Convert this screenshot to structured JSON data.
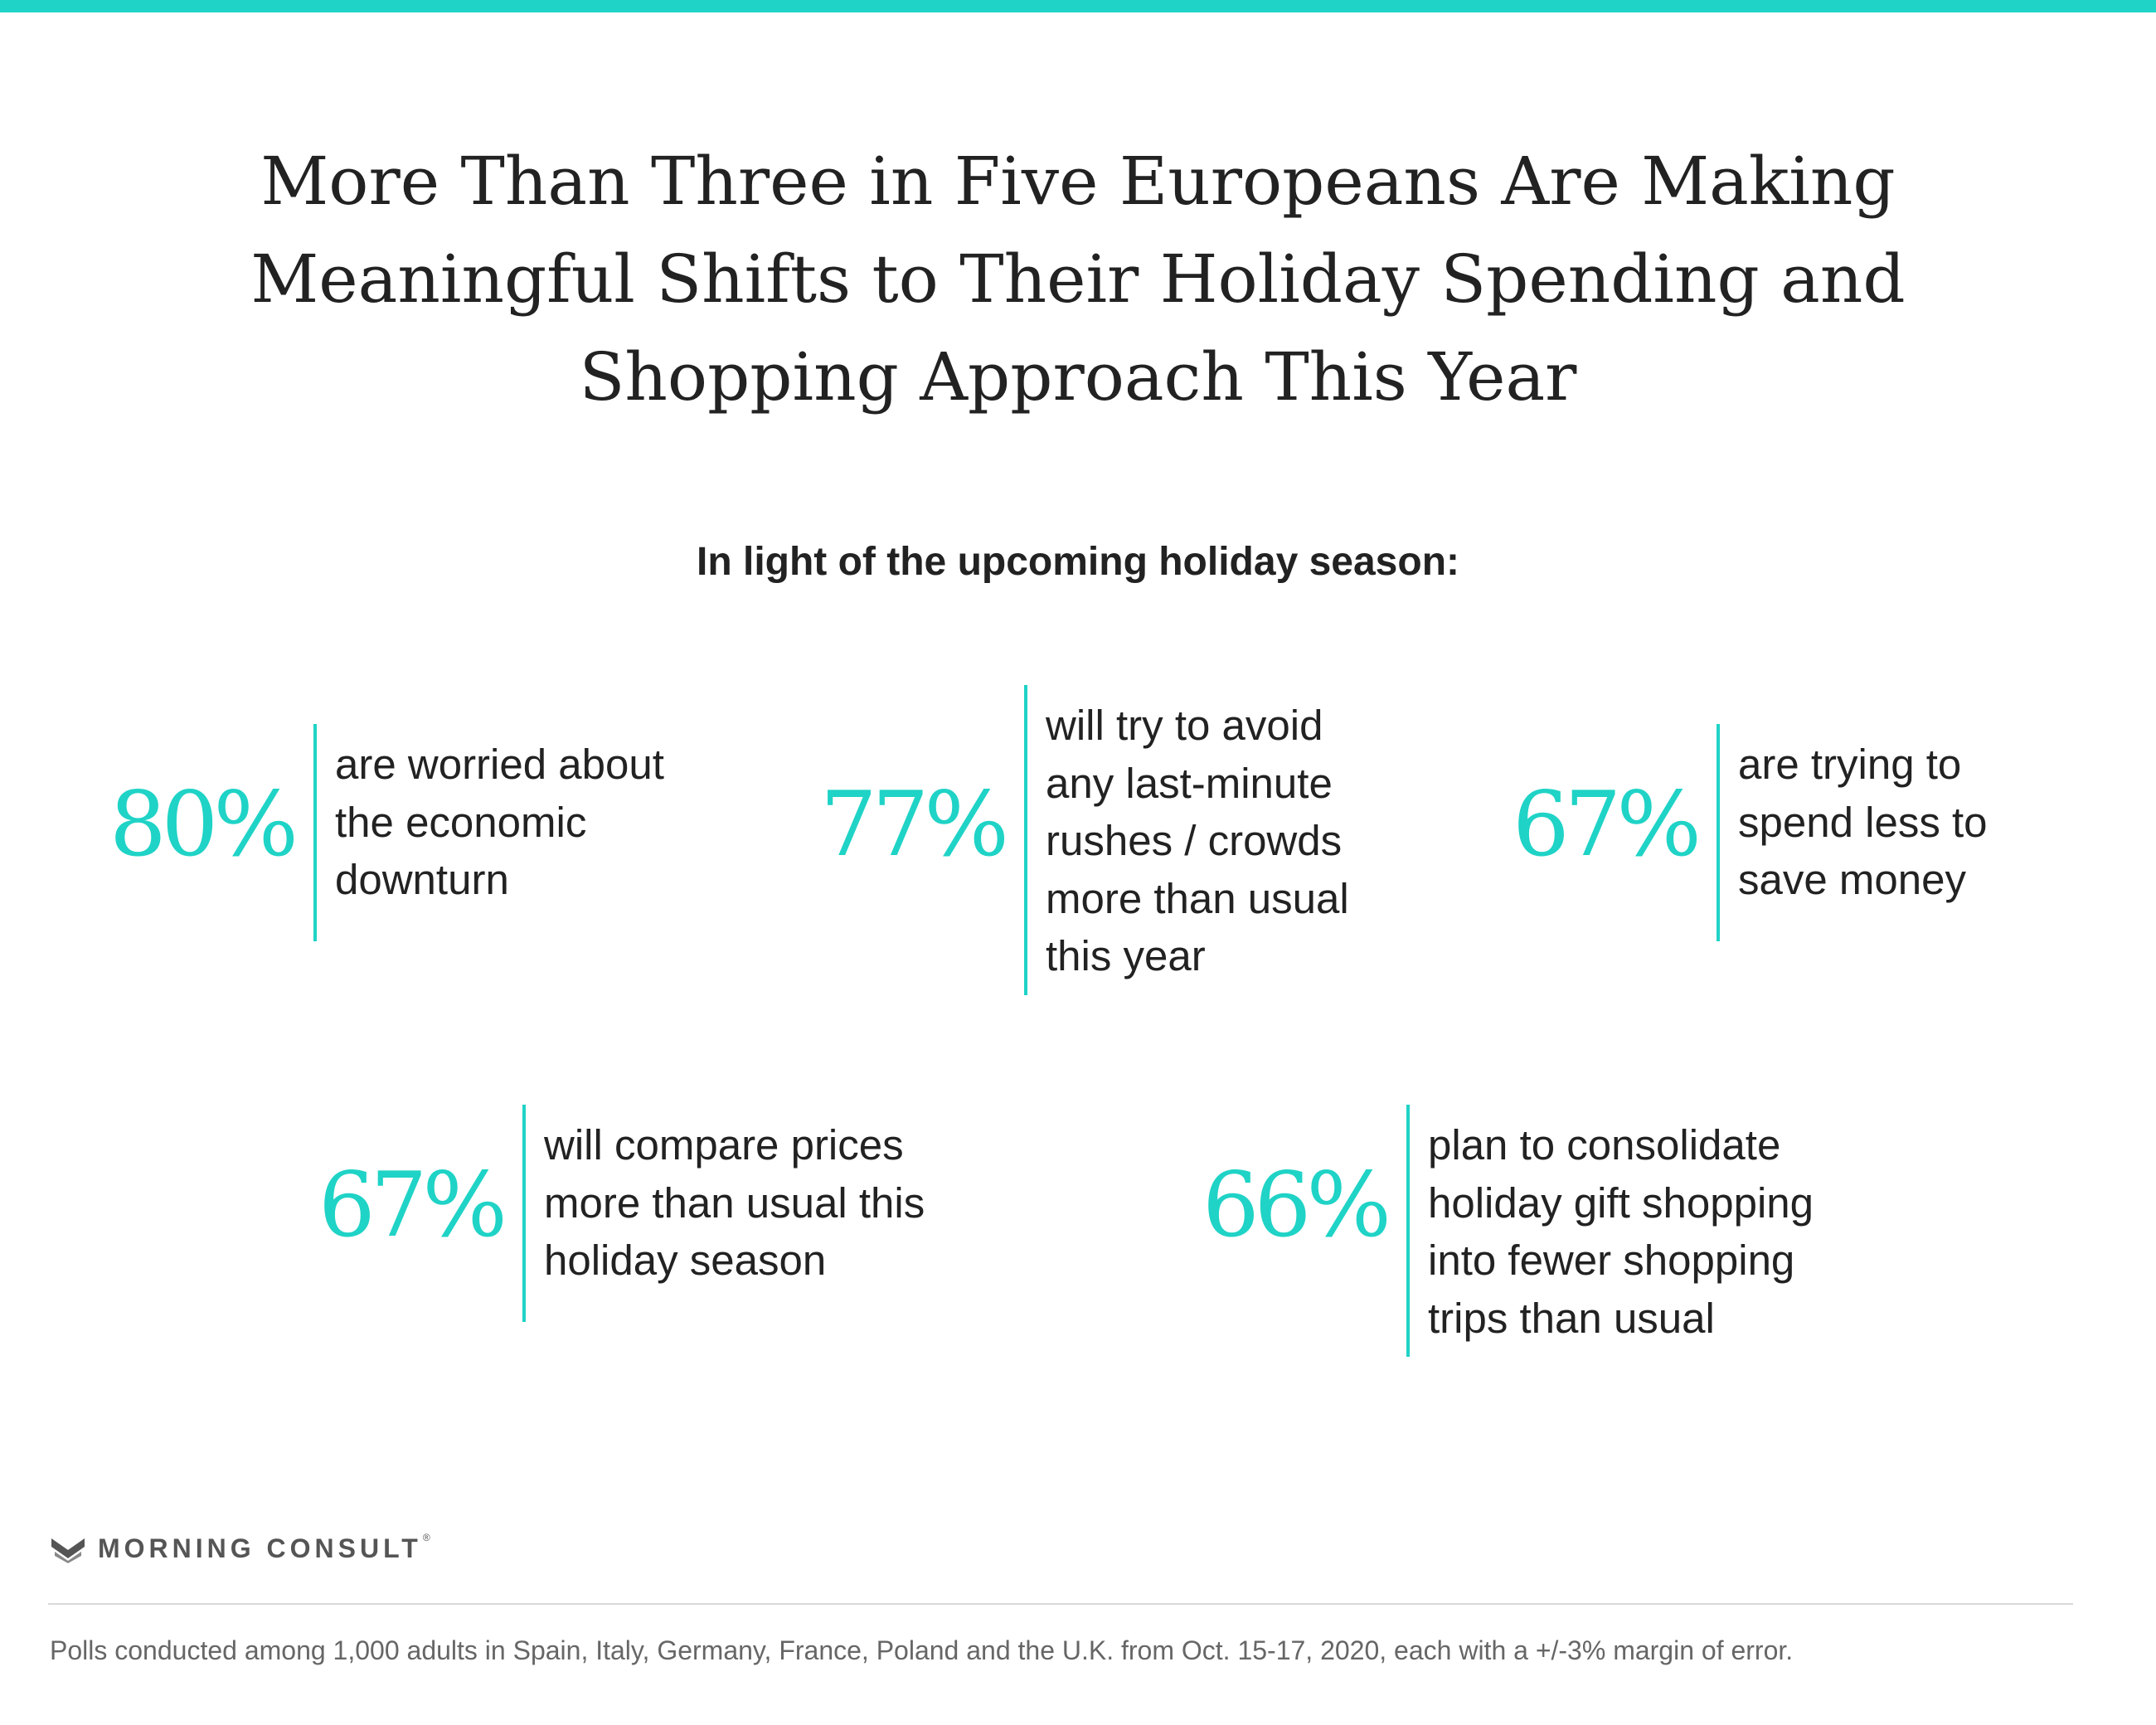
{
  "header": {
    "title_lines": [
      "More Than Three in Five Europeans Are Making",
      "Meaningful Shifts to Their Holiday Spending and",
      "Shopping Approach This Year"
    ],
    "subtitle": "In light of the upcoming holiday season:"
  },
  "stats": [
    {
      "value": "80%",
      "lines": [
        "are worried about",
        "the economic",
        "downturn"
      ]
    },
    {
      "value": "77%",
      "lines": [
        "will try to avoid",
        "any last-minute",
        "rushes / crowds",
        "more than usual",
        "this year"
      ]
    },
    {
      "value": "67%",
      "lines": [
        "are trying to",
        "spend less to",
        "save money"
      ]
    },
    {
      "value": "67%",
      "lines": [
        "will compare prices",
        "more than usual this",
        "holiday season"
      ]
    },
    {
      "value": "66%",
      "lines": [
        "plan to consolidate",
        "holiday gift shopping",
        "into fewer shopping",
        "trips than usual"
      ]
    }
  ],
  "brand": {
    "name": "MORNING CONSULT",
    "registered_mark": "®"
  },
  "footnote": "Polls conducted among 1,000 adults in Spain, Italy, Germany, France, Poland and the U.K. from Oct. 15-17, 2020, each with a +/-3% margin of error.",
  "colors": {
    "accent": "#1fd3c6",
    "text": "#222222",
    "muted": "#666666"
  }
}
